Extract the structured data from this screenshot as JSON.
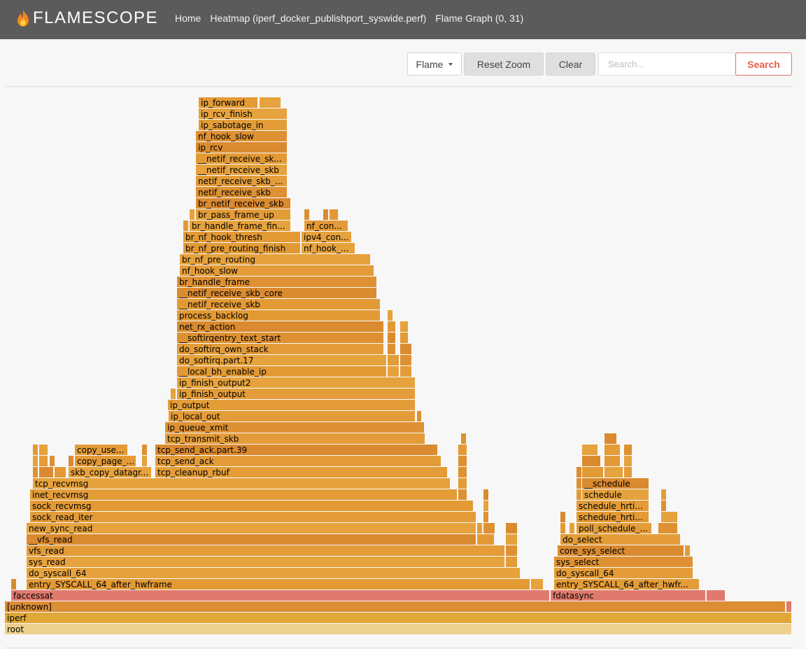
{
  "app": {
    "name": "FLAMESCOPE",
    "logo_icon": "flame-icon"
  },
  "nav": {
    "items": [
      "Home",
      "Heatmap (iperf_docker_publishport_syswide.perf)",
      "Flame Graph (0, 31)"
    ]
  },
  "toolbar": {
    "mode_label": "Flame",
    "reset_zoom_label": "Reset Zoom",
    "clear_label": "Clear",
    "search_placeholder": "Search...",
    "search_label": "Search"
  },
  "colors": {
    "header_bg": "#5b5b5b",
    "search_accent": "#e4604a",
    "frame_warm": "#e39a35",
    "frame_highlight": "#e17a6e",
    "frame_iperf": "#e0a838",
    "frame_root": "#ecd08c"
  },
  "frames": [
    {
      "label": "root",
      "l": 7,
      "w": 1125,
      "row": 0,
      "c": "#ecd08c",
      "tc": "#777"
    },
    {
      "label": "iperf",
      "l": 7,
      "w": 1125,
      "row": 1,
      "c": "#e0a838"
    },
    {
      "label": "[unknown]",
      "l": 7,
      "w": 1116,
      "row": 2,
      "c": "#dc8e35"
    },
    {
      "label": "",
      "l": 1124,
      "w": 8,
      "row": 2,
      "c": "#e17a6e"
    },
    {
      "label": "faccessat",
      "l": 16,
      "w": 770,
      "row": 3,
      "c": "#e17a6e"
    },
    {
      "label": "fdatasync",
      "l": 787,
      "w": 222,
      "row": 3,
      "c": "#e17a6e"
    },
    {
      "label": "",
      "l": 1010,
      "w": 27,
      "row": 3,
      "c": "#e17a6e"
    },
    {
      "label": "",
      "l": 16,
      "w": 8,
      "row": 4
    },
    {
      "label": "entry_SYSCALL_64_after_hwframe",
      "l": 38,
      "w": 720,
      "row": 4
    },
    {
      "label": "",
      "l": 759,
      "w": 18,
      "row": 4
    },
    {
      "label": "entry_SYSCALL_64_after_hwfr...",
      "l": 792,
      "w": 208,
      "row": 4
    },
    {
      "label": "do_syscall_64",
      "l": 38,
      "w": 706,
      "row": 5
    },
    {
      "label": "do_syscall_64",
      "l": 792,
      "w": 199,
      "row": 5
    },
    {
      "label": "sys_read",
      "l": 38,
      "w": 684,
      "row": 6
    },
    {
      "label": "",
      "l": 723,
      "w": 17,
      "row": 6
    },
    {
      "label": "sys_select",
      "l": 792,
      "w": 199,
      "row": 6
    },
    {
      "label": "vfs_read",
      "l": 38,
      "w": 684,
      "row": 7
    },
    {
      "label": "",
      "l": 723,
      "w": 17,
      "row": 7
    },
    {
      "label": "core_sys_select",
      "l": 797,
      "w": 181,
      "row": 7
    },
    {
      "label": "",
      "l": 979,
      "w": 8,
      "row": 7
    },
    {
      "label": "__vfs_read",
      "l": 38,
      "w": 643,
      "row": 8
    },
    {
      "label": "",
      "l": 682,
      "w": 25,
      "row": 8
    },
    {
      "label": "",
      "l": 723,
      "w": 17,
      "row": 8
    },
    {
      "label": "do_select",
      "l": 801,
      "w": 172,
      "row": 8
    },
    {
      "label": "new_sync_read",
      "l": 38,
      "w": 643,
      "row": 9
    },
    {
      "label": "",
      "l": 682,
      "w": 8,
      "row": 9
    },
    {
      "label": "",
      "l": 691,
      "w": 17,
      "row": 9
    },
    {
      "label": "",
      "l": 723,
      "w": 17,
      "row": 9
    },
    {
      "label": "",
      "l": 801,
      "w": 8,
      "row": 9
    },
    {
      "label": "",
      "l": 814,
      "w": 8,
      "row": 9
    },
    {
      "label": "poll_schedule_...",
      "l": 824,
      "w": 108,
      "row": 9
    },
    {
      "label": "",
      "l": 941,
      "w": 28,
      "row": 9
    },
    {
      "label": "sock_read_iter",
      "l": 43,
      "w": 638,
      "row": 10
    },
    {
      "label": "",
      "l": 691,
      "w": 8,
      "row": 10
    },
    {
      "label": "",
      "l": 801,
      "w": 8,
      "row": 10
    },
    {
      "label": "schedule_hrti...",
      "l": 824,
      "w": 104,
      "row": 10
    },
    {
      "label": "",
      "l": 945,
      "w": 24,
      "row": 10
    },
    {
      "label": "sock_recvmsg",
      "l": 43,
      "w": 634,
      "row": 11
    },
    {
      "label": "",
      "l": 691,
      "w": 8,
      "row": 11
    },
    {
      "label": "schedule_hrti...",
      "l": 824,
      "w": 104,
      "row": 11
    },
    {
      "label": "",
      "l": 945,
      "w": 8,
      "row": 11
    },
    {
      "label": "inet_recvmsg",
      "l": 43,
      "w": 611,
      "row": 12
    },
    {
      "label": "",
      "l": 655,
      "w": 13,
      "row": 12
    },
    {
      "label": "",
      "l": 691,
      "w": 8,
      "row": 12
    },
    {
      "label": "",
      "l": 824,
      "w": 8,
      "row": 12
    },
    {
      "label": "schedule",
      "l": 832,
      "w": 96,
      "row": 12
    },
    {
      "label": "",
      "l": 945,
      "w": 8,
      "row": 12
    },
    {
      "label": "tcp_recvmsg",
      "l": 47,
      "w": 597,
      "row": 13
    },
    {
      "label": "",
      "l": 655,
      "w": 13,
      "row": 13
    },
    {
      "label": "",
      "l": 824,
      "w": 8,
      "row": 13
    },
    {
      "label": "__schedule",
      "l": 832,
      "w": 96,
      "row": 13
    },
    {
      "label": "",
      "l": 47,
      "w": 8,
      "row": 14
    },
    {
      "label": "",
      "l": 56,
      "w": 21,
      "row": 14
    },
    {
      "label": "",
      "l": 78,
      "w": 17,
      "row": 14
    },
    {
      "label": "skb_copy_datagr...",
      "l": 98,
      "w": 119,
      "row": 14
    },
    {
      "label": "tcp_cleanup_rbuf",
      "l": 222,
      "w": 418,
      "row": 14
    },
    {
      "label": "",
      "l": 655,
      "w": 13,
      "row": 14
    },
    {
      "label": "",
      "l": 824,
      "w": 8,
      "row": 14
    },
    {
      "label": "",
      "l": 832,
      "w": 31,
      "row": 14
    },
    {
      "label": "",
      "l": 864,
      "w": 27,
      "row": 14
    },
    {
      "label": "",
      "l": 892,
      "w": 12,
      "row": 14
    },
    {
      "label": "",
      "l": 47,
      "w": 8,
      "row": 15
    },
    {
      "label": "",
      "l": 56,
      "w": 13,
      "row": 15
    },
    {
      "label": "",
      "l": 71,
      "w": 8,
      "row": 15
    },
    {
      "label": "",
      "l": 98,
      "w": 8,
      "row": 15
    },
    {
      "label": "copy_page_...",
      "l": 107,
      "w": 88,
      "row": 15
    },
    {
      "label": "",
      "l": 203,
      "w": 8,
      "row": 15
    },
    {
      "label": "tcp_send_ack",
      "l": 222,
      "w": 409,
      "row": 15
    },
    {
      "label": "",
      "l": 655,
      "w": 13,
      "row": 15
    },
    {
      "label": "",
      "l": 832,
      "w": 27,
      "row": 15
    },
    {
      "label": "",
      "l": 864,
      "w": 23,
      "row": 15
    },
    {
      "label": "",
      "l": 892,
      "w": 12,
      "row": 15
    },
    {
      "label": "",
      "l": 47,
      "w": 8,
      "row": 16
    },
    {
      "label": "",
      "l": 56,
      "w": 13,
      "row": 16
    },
    {
      "label": "copy_use...",
      "l": 107,
      "w": 76,
      "row": 16
    },
    {
      "label": "",
      "l": 203,
      "w": 8,
      "row": 16
    },
    {
      "label": "tcp_send_ack.part.39",
      "l": 222,
      "w": 404,
      "row": 16
    },
    {
      "label": "",
      "l": 655,
      "w": 13,
      "row": 16
    },
    {
      "label": "",
      "l": 832,
      "w": 23,
      "row": 16
    },
    {
      "label": "",
      "l": 864,
      "w": 23,
      "row": 16
    },
    {
      "label": "",
      "l": 892,
      "w": 12,
      "row": 16
    },
    {
      "label": "tcp_transmit_skb",
      "l": 236,
      "w": 372,
      "row": 17
    },
    {
      "label": "",
      "l": 659,
      "w": 8,
      "row": 17
    },
    {
      "label": "",
      "l": 864,
      "w": 18,
      "row": 17
    },
    {
      "label": "ip_queue_xmit",
      "l": 236,
      "w": 371,
      "row": 18
    },
    {
      "label": "ip_local_out",
      "l": 241,
      "w": 353,
      "row": 19
    },
    {
      "label": "",
      "l": 596,
      "w": 7,
      "row": 19
    },
    {
      "label": "ip_output",
      "l": 240,
      "w": 354,
      "row": 20
    },
    {
      "label": "",
      "l": 244,
      "w": 8,
      "row": 21
    },
    {
      "label": "ip_finish_output",
      "l": 253,
      "w": 341,
      "row": 21
    },
    {
      "label": "ip_finish_output2",
      "l": 253,
      "w": 341,
      "row": 22
    },
    {
      "label": "__local_bh_enable_ip",
      "l": 253,
      "w": 300,
      "row": 23
    },
    {
      "label": "",
      "l": 554,
      "w": 17,
      "row": 23
    },
    {
      "label": "",
      "l": 572,
      "w": 17,
      "row": 23
    },
    {
      "label": "do_softirq.part.17",
      "l": 253,
      "w": 300,
      "row": 24
    },
    {
      "label": "",
      "l": 554,
      "w": 17,
      "row": 24
    },
    {
      "label": "",
      "l": 572,
      "w": 17,
      "row": 24
    },
    {
      "label": "do_softirq_own_stack",
      "l": 253,
      "w": 296,
      "row": 25
    },
    {
      "label": "",
      "l": 554,
      "w": 12,
      "row": 25
    },
    {
      "label": "",
      "l": 572,
      "w": 17,
      "row": 25
    },
    {
      "label": "__softirqentry_text_start",
      "l": 253,
      "w": 296,
      "row": 26
    },
    {
      "label": "",
      "l": 554,
      "w": 12,
      "row": 26
    },
    {
      "label": "",
      "l": 572,
      "w": 12,
      "row": 26
    },
    {
      "label": "net_rx_action",
      "l": 253,
      "w": 296,
      "row": 27
    },
    {
      "label": "",
      "l": 554,
      "w": 12,
      "row": 27
    },
    {
      "label": "",
      "l": 572,
      "w": 12,
      "row": 27
    },
    {
      "label": "process_backlog",
      "l": 253,
      "w": 291,
      "row": 28
    },
    {
      "label": "",
      "l": 554,
      "w": 8,
      "row": 28
    },
    {
      "label": "__netif_receive_skb",
      "l": 253,
      "w": 291,
      "row": 29
    },
    {
      "label": "__netif_receive_skb_core",
      "l": 253,
      "w": 286,
      "row": 30
    },
    {
      "label": "br_handle_frame",
      "l": 253,
      "w": 286,
      "row": 31
    },
    {
      "label": "nf_hook_slow",
      "l": 257,
      "w": 278,
      "row": 32
    },
    {
      "label": "br_nf_pre_routing",
      "l": 257,
      "w": 273,
      "row": 33
    },
    {
      "label": "br_nf_pre_routing_finish",
      "l": 262,
      "w": 168,
      "row": 34
    },
    {
      "label": "nf_hook_...",
      "l": 431,
      "w": 77,
      "row": 34
    },
    {
      "label": "br_nf_hook_thresh",
      "l": 262,
      "w": 168,
      "row": 35
    },
    {
      "label": "ipv4_con...",
      "l": 431,
      "w": 72,
      "row": 35
    },
    {
      "label": "",
      "l": 262,
      "w": 8,
      "row": 36
    },
    {
      "label": "br_handle_frame_fin...",
      "l": 271,
      "w": 145,
      "row": 36
    },
    {
      "label": "nf_con...",
      "l": 435,
      "w": 63,
      "row": 36
    },
    {
      "label": "",
      "l": 271,
      "w": 8,
      "row": 37
    },
    {
      "label": "br_pass_frame_up",
      "l": 280,
      "w": 136,
      "row": 37
    },
    {
      "label": "",
      "l": 435,
      "w": 8,
      "row": 37
    },
    {
      "label": "",
      "l": 462,
      "w": 8,
      "row": 37
    },
    {
      "label": "",
      "l": 471,
      "w": 13,
      "row": 37
    },
    {
      "label": "br_netif_receive_skb",
      "l": 280,
      "w": 136,
      "row": 38
    },
    {
      "label": "netif_receive_skb",
      "l": 280,
      "w": 131,
      "row": 39
    },
    {
      "label": "netif_receive_skb_...",
      "l": 280,
      "w": 131,
      "row": 40
    },
    {
      "label": "__netif_receive_skb",
      "l": 280,
      "w": 131,
      "row": 41
    },
    {
      "label": "__netif_receive_sk...",
      "l": 280,
      "w": 131,
      "row": 42
    },
    {
      "label": "ip_rcv",
      "l": 280,
      "w": 131,
      "row": 43
    },
    {
      "label": "nf_hook_slow",
      "l": 280,
      "w": 131,
      "row": 44
    },
    {
      "label": "ip_sabotage_in",
      "l": 284,
      "w": 127,
      "row": 45
    },
    {
      "label": "ip_rcv_finish",
      "l": 284,
      "w": 127,
      "row": 46
    },
    {
      "label": "ip_forward",
      "l": 284,
      "w": 85,
      "row": 47
    },
    {
      "label": "",
      "l": 371,
      "w": 31,
      "row": 47
    }
  ]
}
